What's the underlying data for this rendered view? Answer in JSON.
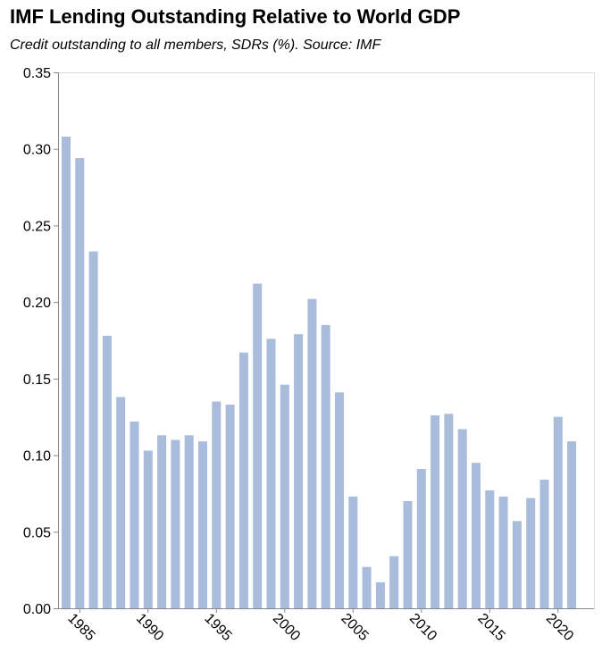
{
  "chart_data": {
    "type": "bar",
    "title": "IMF Lending Outstanding Relative to World GDP",
    "subtitle": "Credit outstanding to all members, SDRs (%). Source: IMF",
    "xlabel": "",
    "ylabel": "",
    "ylim": [
      0,
      0.35
    ],
    "y_ticks": [
      "0.00",
      "0.05",
      "0.10",
      "0.15",
      "0.20",
      "0.25",
      "0.30",
      "0.35"
    ],
    "x_ticks": [
      "1985",
      "1990",
      "1995",
      "2000",
      "2005",
      "2010",
      "2015",
      "2020"
    ],
    "grid": false,
    "bar_color": "#a9bcdb",
    "x": [
      1984,
      1985,
      1986,
      1987,
      1988,
      1989,
      1990,
      1991,
      1992,
      1993,
      1994,
      1995,
      1996,
      1997,
      1998,
      1999,
      2000,
      2001,
      2002,
      2003,
      2004,
      2005,
      2006,
      2007,
      2008,
      2009,
      2010,
      2011,
      2012,
      2013,
      2014,
      2015,
      2016,
      2017,
      2018,
      2019,
      2020,
      2021
    ],
    "values": [
      0.308,
      0.294,
      0.233,
      0.178,
      0.138,
      0.122,
      0.103,
      0.113,
      0.11,
      0.113,
      0.109,
      0.135,
      0.133,
      0.167,
      0.212,
      0.176,
      0.146,
      0.179,
      0.202,
      0.185,
      0.141,
      0.073,
      0.027,
      0.017,
      0.034,
      0.07,
      0.091,
      0.126,
      0.127,
      0.117,
      0.095,
      0.077,
      0.073,
      0.057,
      0.072,
      0.084,
      0.125,
      0.109
    ]
  }
}
